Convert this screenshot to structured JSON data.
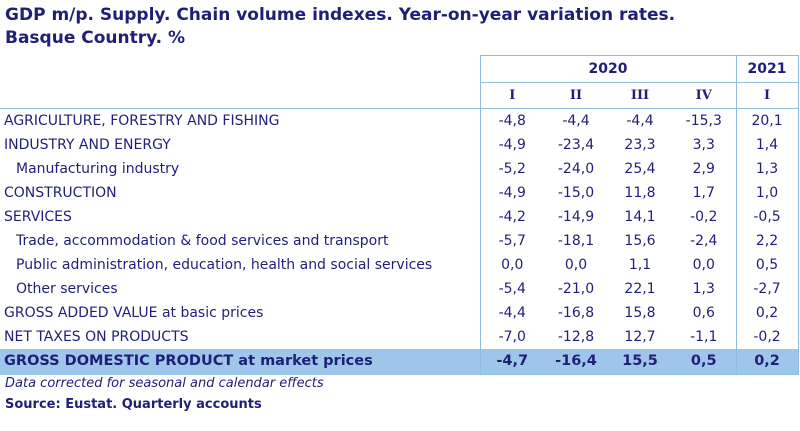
{
  "title_line1": "GDP m/p. Supply. Chain volume indexes. Year-on-year variation rates.",
  "title_line2": "Basque Country. %",
  "years": [
    "2020",
    "2021"
  ],
  "quarters": [
    "I",
    "II",
    "III",
    "IV",
    "I"
  ],
  "rows": [
    {
      "label": "AGRICULTURE, FORESTRY AND FISHING",
      "values": [
        "-4,8",
        "-4,4",
        "-4,4",
        "-15,3",
        "20,1"
      ]
    },
    {
      "label": "INDUSTRY AND ENERGY",
      "values": [
        "-4,9",
        "-23,4",
        "23,3",
        "3,3",
        "1,4"
      ]
    },
    {
      "label": "Manufacturing industry",
      "values": [
        "-5,2",
        "-24,0",
        "25,4",
        "2,9",
        "1,3"
      ]
    },
    {
      "label": "CONSTRUCTION",
      "values": [
        "-4,9",
        "-15,0",
        "11,8",
        "1,7",
        "1,0"
      ]
    },
    {
      "label": "SERVICES",
      "values": [
        "-4,2",
        "-14,9",
        "14,1",
        "-0,2",
        "-0,5"
      ]
    },
    {
      "label": "Trade, accommodation & food services and transport",
      "values": [
        "-5,7",
        "-18,1",
        "15,6",
        "-2,4",
        "2,2"
      ]
    },
    {
      "label": "Public administration, education, health and social services",
      "values": [
        "0,0",
        "0,0",
        "1,1",
        "0,0",
        "0,5"
      ]
    },
    {
      "label": "Other services",
      "values": [
        "-5,4",
        "-21,0",
        "22,1",
        "1,3",
        "-2,7"
      ]
    },
    {
      "label": "GROSS ADDED VALUE at basic prices",
      "values": [
        "-4,4",
        "-16,8",
        "15,8",
        "0,6",
        "0,2"
      ]
    },
    {
      "label": "NET TAXES ON PRODUCTS",
      "values": [
        "-7,0",
        "-12,8",
        "12,7",
        "-1,1",
        "-0,2"
      ]
    },
    {
      "label": "GROSS DOMESTIC PRODUCT at market prices",
      "values": [
        "-4,7",
        "-16,4",
        "15,5",
        "0,5",
        "0,2"
      ]
    }
  ],
  "note": "Data corrected for seasonal and calendar effects",
  "source": "Source: Eustat. Quarterly accounts",
  "colors": {
    "text": "#1f1f7a",
    "total_row_bg": "#9fc5e8",
    "border": "#8fbde0"
  }
}
